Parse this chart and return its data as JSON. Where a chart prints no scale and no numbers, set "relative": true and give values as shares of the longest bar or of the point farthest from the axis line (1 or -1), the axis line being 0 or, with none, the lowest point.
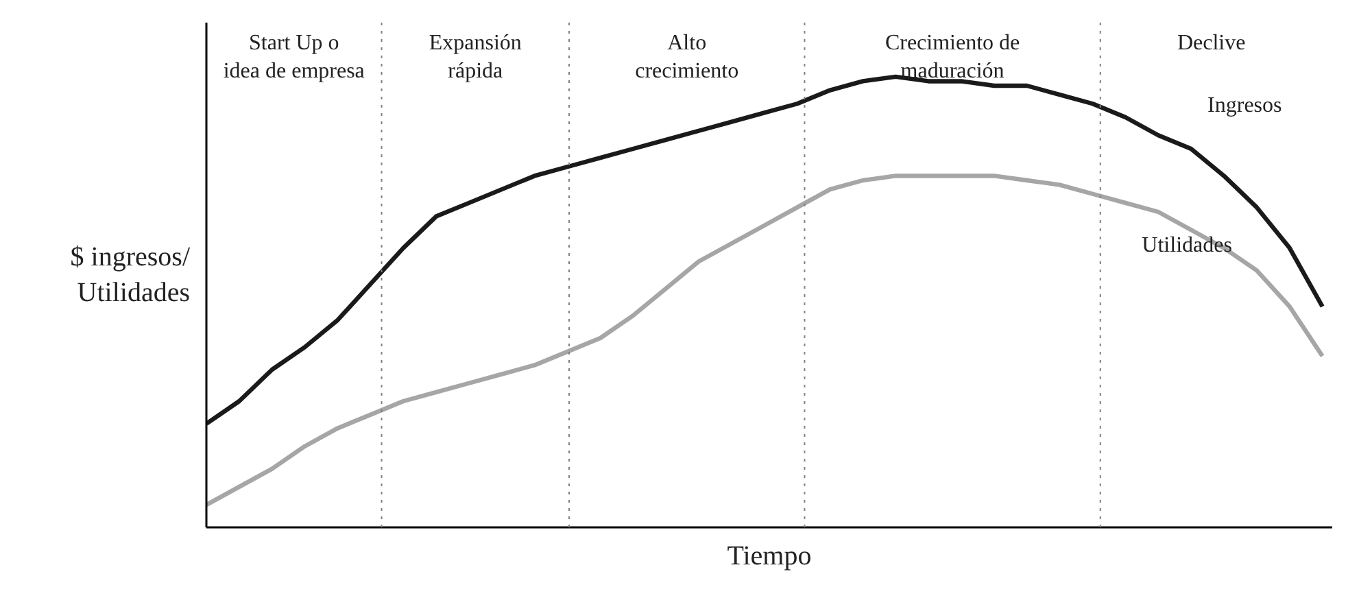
{
  "chart_data": {
    "type": "line",
    "relative": true,
    "xlabel": "Tiempo",
    "ylabel": "$ ingresos/\nUtilidades",
    "categories": [
      null,
      null,
      null,
      null,
      null,
      null,
      null,
      null,
      null,
      null,
      null,
      null,
      null,
      null,
      null,
      null,
      null,
      null,
      null,
      null,
      null,
      null,
      null,
      null,
      null,
      null,
      null,
      null,
      null,
      null,
      null,
      null,
      null,
      null,
      null
    ],
    "series": [
      {
        "name": "Ingresos",
        "color": "#1a1a1a",
        "values": [
          0.23,
          0.28,
          0.35,
          0.4,
          0.46,
          0.54,
          0.62,
          0.69,
          0.72,
          0.75,
          0.78,
          0.8,
          0.82,
          0.84,
          0.86,
          0.88,
          0.9,
          0.92,
          0.94,
          0.97,
          0.99,
          1.0,
          0.99,
          0.99,
          0.98,
          0.98,
          0.96,
          0.94,
          0.91,
          0.87,
          0.84,
          0.78,
          0.71,
          0.62,
          0.49
        ]
      },
      {
        "name": "Utilidades",
        "color": "#a6a6a6",
        "values": [
          0.05,
          0.09,
          0.13,
          0.18,
          0.22,
          0.25,
          0.28,
          0.3,
          0.32,
          0.34,
          0.36,
          0.39,
          0.42,
          0.47,
          0.53,
          0.59,
          0.63,
          0.67,
          0.71,
          0.75,
          0.77,
          0.78,
          0.78,
          0.78,
          0.78,
          0.77,
          0.76,
          0.74,
          0.72,
          0.7,
          0.66,
          0.62,
          0.57,
          0.49,
          0.38
        ]
      }
    ],
    "annotations": [
      "Start Up o\nidea de empresa",
      "Expansión\nrápida",
      "Alto\ncrecimiento",
      "Crecimiento de\nmaduración",
      "Declive"
    ],
    "grid": false,
    "legend": false,
    "marker": "none",
    "line_style": "solid"
  }
}
